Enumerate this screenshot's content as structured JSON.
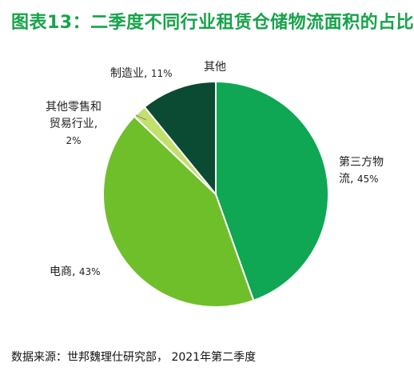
{
  "title": "图表13：二季度不同行业租赁仓储物流面积的占比",
  "source": "数据来源：世邦魏理仕研究部， 2021年第二季度",
  "colors": {
    "title": "#16a34a",
    "slices": [
      "#0fa654",
      "#6fbf2a",
      "#c4e06c",
      "#0b4a33"
    ]
  },
  "chart_data": {
    "type": "pie",
    "title": "图表13：二季度不同行业租赁仓储物流面积的占比",
    "slices": [
      {
        "label_line1": "第三方物",
        "label_line2": "流,",
        "value": 45,
        "value_text": "45%"
      },
      {
        "label_line1": "电商,",
        "value": 43,
        "value_text": "43%"
      },
      {
        "label_line1": "其他零售和",
        "label_line2": "贸易行业,",
        "label_line3": "2%",
        "value": 2
      },
      {
        "label_line1": "制造业,",
        "value": 11,
        "value_text": "11%"
      }
    ],
    "unlabeled_slice": {
      "label": "其他",
      "value": 0
    },
    "legend": "none",
    "start": "top",
    "direction": "clockwise"
  }
}
